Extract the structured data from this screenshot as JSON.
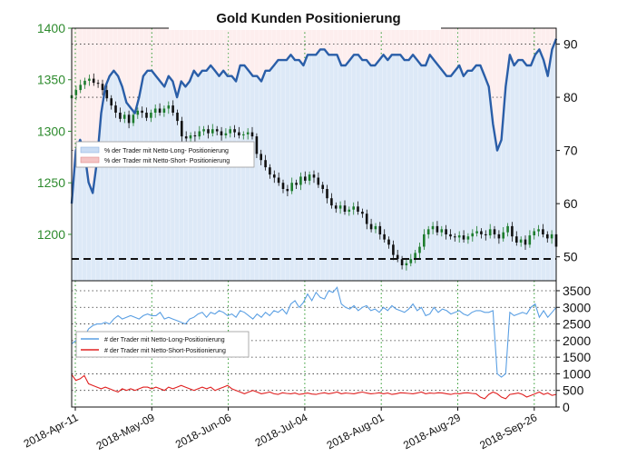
{
  "chart_data": [
    {
      "type": "candlestick+area",
      "title": "Gold Kunden Positionierung",
      "x_labels": [
        "2018-Apr-11",
        "2018-May-09",
        "2018-Jun-06",
        "2018-Jul-04",
        "2018-Aug-01",
        "2018-Aug-29",
        "2018-Sep-26"
      ],
      "left_axis": {
        "ticks": [
          1200,
          1250,
          1300,
          1350,
          1400
        ],
        "ylim": [
          1155,
          1400
        ],
        "color": "#2e8b2e"
      },
      "right_axis": {
        "ticks": [
          50,
          60,
          70,
          80,
          90
        ],
        "ylim": [
          45.5,
          93
        ]
      },
      "reference_line": {
        "axis": "right",
        "value": 49.6,
        "style": "dashed"
      },
      "price": [
        1335,
        1340,
        1345,
        1349,
        1351,
        1347,
        1346,
        1340,
        1332,
        1325,
        1318,
        1312,
        1316,
        1308,
        1316,
        1320,
        1318,
        1313,
        1318,
        1322,
        1318,
        1322,
        1325,
        1318,
        1310,
        1295,
        1293,
        1296,
        1295,
        1300,
        1302,
        1298,
        1302,
        1300,
        1296,
        1298,
        1302,
        1299,
        1296,
        1297,
        1299,
        1295,
        1278,
        1272,
        1265,
        1258,
        1255,
        1250,
        1244,
        1242,
        1250,
        1248,
        1256,
        1252,
        1258,
        1255,
        1248,
        1244,
        1235,
        1228,
        1225,
        1228,
        1222,
        1224,
        1227,
        1222,
        1220,
        1210,
        1205,
        1208,
        1200,
        1195,
        1190,
        1180,
        1176,
        1170,
        1172,
        1176,
        1182,
        1188,
        1200,
        1205,
        1208,
        1202,
        1205,
        1200,
        1198,
        1197,
        1199,
        1195,
        1198,
        1201,
        1203,
        1200,
        1199,
        1205,
        1200,
        1196,
        1202,
        1208,
        1198,
        1192,
        1195,
        1190,
        1199,
        1203,
        1205,
        1200,
        1196,
        1200,
        1188
      ],
      "series": [
        {
          "name": "% der Trader  mit  Netto-Long-  Positionierung",
          "axis": "right",
          "color": "#2a5ea8",
          "fill": "#dde9f7",
          "values": [
            60,
            70,
            72,
            70,
            64,
            62,
            68,
            77,
            82,
            84,
            85,
            84,
            82,
            79,
            78,
            77,
            80,
            84,
            85,
            85,
            84,
            83,
            82,
            84,
            83,
            80,
            83,
            82,
            83,
            85,
            84,
            85,
            85,
            86,
            85,
            84,
            85,
            84,
            84,
            83,
            86,
            86,
            85,
            84,
            84,
            83,
            85,
            85,
            86,
            87,
            87,
            87,
            88,
            87,
            87,
            86,
            88,
            88,
            88,
            89,
            89,
            88,
            88,
            88,
            86,
            86,
            87,
            88,
            88,
            87,
            87,
            86,
            86,
            87,
            88,
            87,
            88,
            88,
            88,
            87,
            87,
            88,
            87,
            86,
            86,
            88,
            87,
            86,
            85,
            84,
            84,
            85,
            86,
            84,
            85,
            85,
            86,
            86,
            84,
            82,
            75,
            70,
            72,
            82,
            88,
            86,
            87,
            87,
            86,
            86,
            88,
            89,
            87,
            84,
            89,
            91
          ]
        },
        {
          "name": "% der Trader  mit  Netto-Short-  Positionierung",
          "axis": "right",
          "color": "#e05b5b",
          "fill": "#f7dcdc",
          "values": []
        }
      ]
    },
    {
      "type": "line",
      "y_axis": {
        "ticks": [
          0,
          500,
          1000,
          1500,
          2000,
          2500,
          3000,
          3500
        ],
        "ylim": [
          0,
          3800
        ]
      },
      "series": [
        {
          "name": "# der Trader  mit  Netto-Long-Positionierung",
          "color": "#5a9fe3",
          "values": [
            1900,
            2000,
            1850,
            2100,
            2350,
            2450,
            2500,
            2500,
            2550,
            2500,
            2650,
            2750,
            2650,
            2700,
            2750,
            2700,
            2650,
            2750,
            2800,
            2750,
            2750,
            2850,
            2650,
            2700,
            2650,
            2600,
            2550,
            2500,
            2650,
            2700,
            2800,
            2850,
            2700,
            2850,
            2800,
            2900,
            2850,
            2750,
            2800,
            2700,
            2900,
            2850,
            2750,
            2650,
            2800,
            2700,
            2850,
            2750,
            2900,
            2850,
            2950,
            2800,
            3100,
            3200,
            3000,
            3150,
            3400,
            3200,
            3450,
            3300,
            3250,
            3500,
            3450,
            3600,
            3100,
            3000,
            2950,
            3050,
            2900,
            3000,
            3050,
            2900,
            2950,
            2850,
            3000,
            2900,
            3050,
            2950,
            2900,
            2850,
            2950,
            3100,
            2900,
            3000,
            2750,
            2800,
            3000,
            2850,
            2950,
            2900,
            2800,
            2850,
            2900,
            2800,
            2750,
            2850,
            2900,
            2900,
            2850,
            2850,
            2900,
            1000,
            900,
            1000,
            2850,
            2750,
            2800,
            2850,
            2800,
            3000,
            3100,
            2700,
            2900,
            2700,
            2850,
            3000
          ]
        },
        {
          "name": "# der Trader  mit  Netto-Short-Positionierung",
          "color": "#e02020",
          "values": [
            980,
            800,
            850,
            950,
            700,
            650,
            600,
            550,
            600,
            550,
            500,
            450,
            550,
            500,
            550,
            500,
            550,
            600,
            600,
            550,
            600,
            550,
            500,
            600,
            550,
            600,
            650,
            600,
            550,
            500,
            550,
            600,
            550,
            600,
            500,
            550,
            600,
            650,
            550,
            500,
            450,
            400,
            450,
            500,
            450,
            400,
            420,
            450,
            400,
            380,
            430,
            410,
            400,
            420,
            380,
            400,
            420,
            390,
            380,
            410,
            430,
            400,
            420,
            450,
            400,
            420,
            410,
            400,
            430,
            450,
            420,
            400,
            410,
            430,
            400,
            420,
            380,
            400,
            430,
            420,
            410,
            400,
            420,
            450,
            400,
            420,
            410,
            430,
            420,
            400,
            380,
            410,
            400,
            420,
            430,
            410,
            400,
            300,
            250,
            380,
            450,
            400,
            300,
            250,
            380,
            400,
            420,
            380,
            300,
            350,
            400,
            450,
            380,
            420,
            350,
            380
          ]
        }
      ]
    }
  ]
}
